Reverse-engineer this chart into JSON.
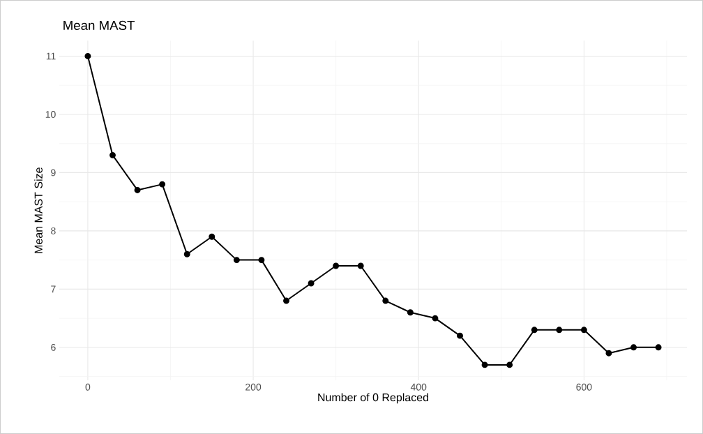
{
  "chart_data": {
    "type": "line",
    "title": "Mean MAST",
    "xlabel": "Number of 0 Replaced",
    "ylabel": "Mean MAST Size",
    "x": [
      0,
      30,
      60,
      90,
      120,
      150,
      180,
      210,
      240,
      270,
      300,
      330,
      360,
      390,
      420,
      450,
      480,
      510,
      540,
      570,
      600,
      630,
      660,
      690
    ],
    "series": [
      {
        "color": "#000000",
        "values": [
          11,
          9.3,
          8.7,
          8.8,
          7.6,
          7.9,
          7.5,
          7.5,
          6.8,
          7.1,
          7.4,
          7.4,
          6.8,
          6.6,
          6.5,
          6.2,
          5.7,
          5.7,
          6.3,
          6.3,
          6.3,
          5.9,
          6.0,
          6.0
        ]
      }
    ],
    "xlim": [
      -34.5,
      724.5
    ],
    "ylim": [
      5.435,
      11.265
    ],
    "xticks": [
      0,
      200,
      400,
      600
    ],
    "yticks": [
      6,
      7,
      8,
      9,
      10,
      11
    ],
    "grid": true,
    "marker": "circle",
    "line_style": "solid"
  }
}
